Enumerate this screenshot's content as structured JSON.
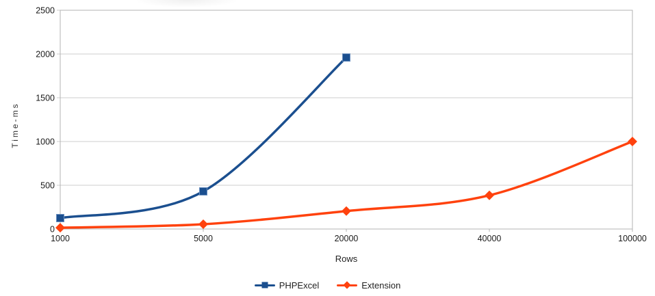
{
  "chart_data": {
    "type": "line",
    "title": "",
    "xlabel": "Rows",
    "ylabel": "Time-ms",
    "categories": [
      "1000",
      "5000",
      "20000",
      "40000",
      "100000"
    ],
    "series": [
      {
        "name": "PHPExcel",
        "values": [
          125,
          430,
          1960,
          null,
          null
        ],
        "color": "#1B4F8F",
        "marker": "square",
        "marker_edge": "#6A8FBF"
      },
      {
        "name": "Extension",
        "values": [
          15,
          55,
          205,
          385,
          1000
        ],
        "color": "#FF420E",
        "marker": "diamond",
        "marker_edge": "#FF6A3C"
      }
    ],
    "ylim": [
      0,
      2500
    ],
    "yticks": [
      0,
      500,
      1000,
      1500,
      2000,
      2500
    ],
    "grid": "horizontal",
    "legend_position": "bottom"
  },
  "colors": {
    "axis": "#b3b3b3",
    "grid": "#cccccc",
    "tick_text": "#1a1a1a",
    "background": "#ffffff"
  }
}
